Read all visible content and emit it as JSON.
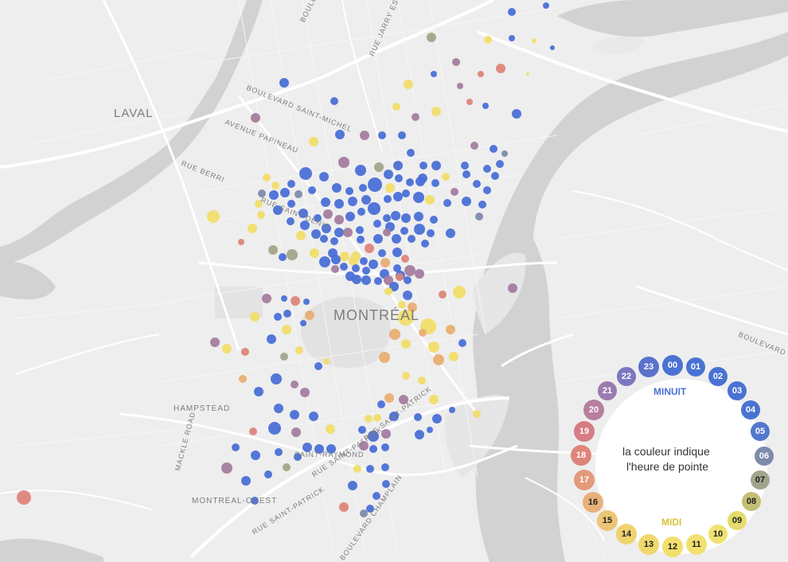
{
  "map": {
    "place_labels": [
      {
        "id": "laval",
        "text": "LAVAL"
      },
      {
        "id": "montreal",
        "text": "MONTRÉAL"
      },
      {
        "id": "hampstead",
        "text": "HAMPSTEAD"
      },
      {
        "id": "montreal-ouest",
        "text": "MONTRÉAL-OUEST"
      }
    ],
    "street_labels": [
      "BOULEVARD LACORDAIRE",
      "RUE JARRY EST",
      "BOULEVARD SAINT-MICHEL",
      "AVENUE PAPINEAU",
      "RUE BERRI",
      "RUE SAINT-DENIS",
      "MACKLE ROAD",
      "RUE SAINT-PATRICK",
      "RUE SAINT-PATRICK",
      "SAINT-RAYMOND",
      "RUE SAINT-PATRICK",
      "BOULEVARD CHAMPLAIN",
      "BOULEVARD"
    ]
  },
  "legend": {
    "title_midnight": "MINUIT",
    "title_noon": "MIDI",
    "caption_line1": "la couleur indique",
    "caption_line2": "l'heure de pointe",
    "hours": [
      {
        "label": "00",
        "color": "#4a72d3"
      },
      {
        "label": "01",
        "color": "#4a72d3"
      },
      {
        "label": "02",
        "color": "#4a72d3"
      },
      {
        "label": "03",
        "color": "#4a72d3"
      },
      {
        "label": "04",
        "color": "#4a72d3"
      },
      {
        "label": "05",
        "color": "#5377cc"
      },
      {
        "label": "06",
        "color": "#7d8aab"
      },
      {
        "label": "07",
        "color": "#a2a48c"
      },
      {
        "label": "08",
        "color": "#c2bf75"
      },
      {
        "label": "09",
        "color": "#e4dc6d"
      },
      {
        "label": "10",
        "color": "#f0e272"
      },
      {
        "label": "11",
        "color": "#f2e070"
      },
      {
        "label": "12",
        "color": "#f2df6c"
      },
      {
        "label": "13",
        "color": "#f0d86d"
      },
      {
        "label": "14",
        "color": "#efd36f"
      },
      {
        "label": "15",
        "color": "#ecc576"
      },
      {
        "label": "16",
        "color": "#e8b07a"
      },
      {
        "label": "17",
        "color": "#e39a7a"
      },
      {
        "label": "18",
        "color": "#df8478"
      },
      {
        "label": "19",
        "color": "#d57c84"
      },
      {
        "label": "20",
        "color": "#b67f9c"
      },
      {
        "label": "21",
        "color": "#9a7bb0"
      },
      {
        "label": "22",
        "color": "#7c78c0"
      },
      {
        "label": "23",
        "color": "#5b72cc"
      }
    ]
  },
  "colors": {
    "night": "#4a6fd6",
    "day": "#f0dd6a",
    "evening": "#e2917c",
    "water": "#d0d0d0",
    "land": "#ededed",
    "park": "#e0e0e0"
  }
}
